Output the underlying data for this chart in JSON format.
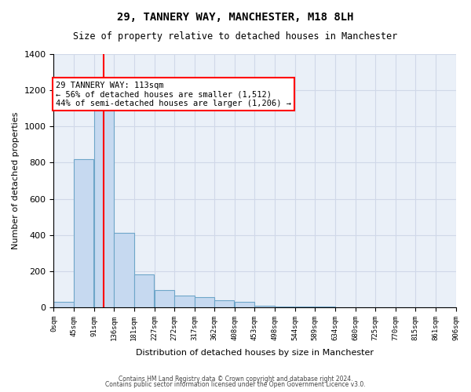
{
  "title1": "29, TANNERY WAY, MANCHESTER, M18 8LH",
  "title2": "Size of property relative to detached houses in Manchester",
  "xlabel": "Distribution of detached houses by size in Manchester",
  "ylabel": "Number of detached properties",
  "bin_edges": [
    0,
    45,
    91,
    136,
    181,
    227,
    272,
    317,
    362,
    408,
    453,
    498,
    544,
    589,
    634,
    680,
    725,
    770,
    815,
    861,
    906
  ],
  "bar_heights": [
    30,
    820,
    1090,
    410,
    180,
    95,
    65,
    55,
    40,
    30,
    10,
    5,
    5,
    5,
    0,
    0,
    0,
    0,
    0,
    0
  ],
  "bar_color": "#c6d9f0",
  "bar_edge_color": "#6ea6c9",
  "grid_color": "#d0d8e8",
  "bg_color": "#eaf0f8",
  "vline_x": 113,
  "vline_color": "red",
  "annotation_text": "29 TANNERY WAY: 113sqm\n← 56% of detached houses are smaller (1,512)\n44% of semi-detached houses are larger (1,206) →",
  "annotation_box_color": "red",
  "ylim": [
    0,
    1400
  ],
  "yticks": [
    0,
    200,
    400,
    600,
    800,
    1000,
    1200,
    1400
  ],
  "tick_labels": [
    "0sqm",
    "45sqm",
    "91sqm",
    "136sqm",
    "181sqm",
    "227sqm",
    "272sqm",
    "317sqm",
    "362sqm",
    "408sqm",
    "453sqm",
    "498sqm",
    "544sqm",
    "589sqm",
    "634sqm",
    "680sqm",
    "725sqm",
    "770sqm",
    "815sqm",
    "861sqm",
    "906sqm"
  ],
  "footer1": "Contains HM Land Registry data © Crown copyright and database right 2024.",
  "footer2": "Contains public sector information licensed under the Open Government Licence v3.0."
}
